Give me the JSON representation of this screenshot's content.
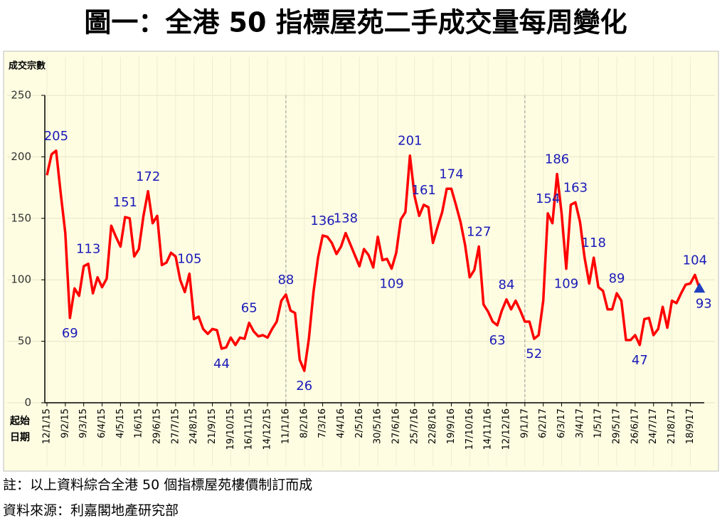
{
  "chart_data": {
    "type": "line",
    "title": "圖一：全港 50 指標屋苑二手成交量每周變化",
    "ylabel": "成交宗數",
    "xlabel": [
      "起始",
      "日期"
    ],
    "notes": [
      "註：以上資料綜合全港 50 個指標屋苑樓價制訂而成",
      "資料來源：利嘉閣地產研究部"
    ],
    "categories": [
      "12/1/15",
      null,
      null,
      null,
      "9/2/15",
      null,
      null,
      null,
      "9/3/15",
      null,
      null,
      null,
      "6/4/15",
      null,
      null,
      null,
      "4/5/15",
      null,
      null,
      null,
      "1/6/15",
      null,
      null,
      null,
      "29/6/15",
      null,
      null,
      null,
      "27/7/15",
      null,
      null,
      null,
      "24/8/15",
      null,
      null,
      null,
      "21/9/15",
      null,
      null,
      null,
      "19/10/15",
      null,
      null,
      null,
      "16/11/15",
      null,
      null,
      null,
      "14/12/15",
      null,
      null,
      null,
      "11/1/16",
      null,
      null,
      null,
      "8/2/16",
      null,
      null,
      null,
      "7/3/16",
      null,
      null,
      null,
      "4/4/16",
      null,
      null,
      null,
      "2/5/16",
      null,
      null,
      null,
      "30/5/16",
      null,
      null,
      null,
      "27/6/16",
      null,
      null,
      null,
      "25/7/16",
      null,
      null,
      null,
      "22/8/16",
      null,
      null,
      null,
      "19/9/16",
      null,
      null,
      null,
      "17/10/16",
      null,
      null,
      null,
      "14/11/16",
      null,
      null,
      null,
      "12/12/16",
      null,
      null,
      null,
      "9/1/17",
      null,
      null,
      null,
      "6/2/17",
      null,
      null,
      null,
      "6/3/17",
      null,
      null,
      null,
      "3/4/17",
      null,
      null,
      null,
      "1/5/17",
      null,
      null,
      null,
      "29/5/17",
      null,
      null,
      null,
      "26/6/17",
      null,
      null,
      null,
      "24/7/17",
      null,
      null,
      null,
      "21/8/17",
      null,
      null,
      null,
      "18/9/17",
      null,
      null
    ],
    "values": [
      185,
      202,
      205,
      170,
      138,
      69,
      93,
      87,
      111,
      113,
      89,
      102,
      94,
      101,
      144,
      135,
      127,
      151,
      150,
      119,
      125,
      152,
      172,
      146,
      152,
      112,
      114,
      122,
      119,
      100,
      90,
      105,
      68,
      70,
      60,
      56,
      60,
      59,
      44,
      45,
      53,
      47,
      53,
      52,
      65,
      58,
      54,
      55,
      53,
      60,
      66,
      83,
      88,
      75,
      73,
      35,
      26,
      52,
      90,
      118,
      136,
      135,
      130,
      121,
      127,
      138,
      129,
      120,
      111,
      125,
      120,
      110,
      135,
      116,
      117,
      109,
      122,
      149,
      155,
      201,
      168,
      152,
      161,
      159,
      130,
      143,
      155,
      174,
      174,
      161,
      147,
      128,
      102,
      108,
      127,
      80,
      74,
      66,
      63,
      75,
      84,
      76,
      83,
      75,
      66,
      66,
      52,
      55,
      83,
      154,
      146,
      186,
      154,
      109,
      161,
      163,
      147,
      118,
      97,
      118,
      94,
      91,
      76,
      76,
      89,
      83,
      51,
      51,
      55,
      47,
      68,
      69,
      55,
      60,
      78,
      61,
      83,
      81,
      89,
      96,
      97,
      104,
      93
    ],
    "value_labels": [
      null,
      null,
      "205",
      null,
      null,
      "69",
      null,
      null,
      null,
      "113",
      null,
      null,
      null,
      null,
      null,
      null,
      null,
      "151",
      null,
      null,
      null,
      null,
      "172",
      null,
      null,
      null,
      null,
      null,
      null,
      null,
      null,
      "105",
      null,
      null,
      null,
      null,
      null,
      null,
      "44",
      null,
      null,
      null,
      null,
      null,
      "65",
      null,
      null,
      null,
      null,
      null,
      null,
      null,
      "88",
      null,
      null,
      null,
      "26",
      null,
      null,
      null,
      "136",
      null,
      null,
      null,
      null,
      "138",
      null,
      null,
      null,
      null,
      null,
      null,
      null,
      null,
      null,
      "109",
      null,
      null,
      null,
      "201",
      null,
      null,
      "161",
      null,
      null,
      null,
      null,
      null,
      "174",
      null,
      null,
      null,
      null,
      null,
      "127",
      null,
      null,
      null,
      "63",
      null,
      "84",
      null,
      null,
      null,
      null,
      null,
      "52",
      null,
      null,
      "154",
      null,
      "186",
      null,
      "109",
      null,
      "163",
      null,
      null,
      null,
      "118",
      null,
      null,
      null,
      null,
      "89",
      null,
      null,
      null,
      null,
      "47",
      null,
      null,
      null,
      null,
      null,
      null,
      null,
      null,
      null,
      null,
      null,
      "104",
      "93"
    ],
    "color": "#ff0000",
    "label_color": "#1a1ab8",
    "ylim": [
      0,
      250
    ],
    "yticks": [
      0,
      50,
      100,
      150,
      200,
      250
    ],
    "grid": true
  }
}
